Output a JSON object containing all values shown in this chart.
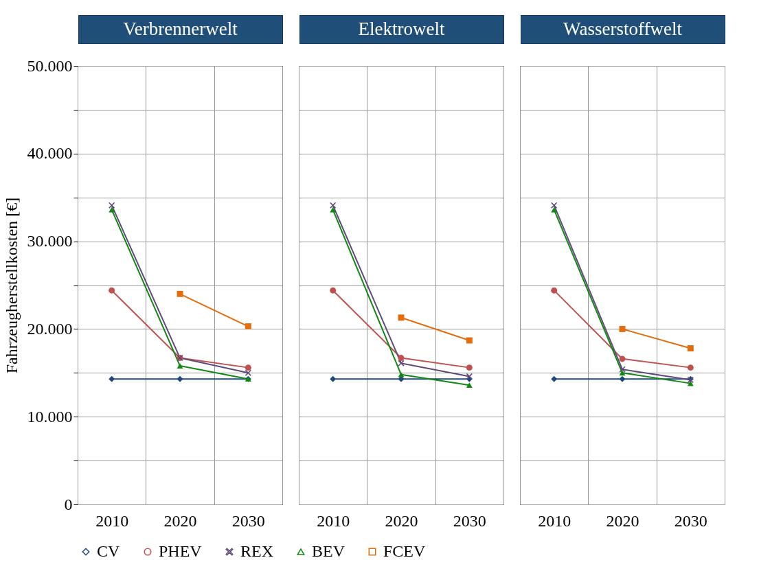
{
  "chart_data": [
    {
      "type": "line",
      "title": "Verbrennerwelt",
      "ylabel": "Fahrzeugherstellkosten [€]",
      "categories": [
        "2010",
        "2020",
        "2030"
      ],
      "ylim": [
        0,
        50000
      ],
      "yticks": [
        0,
        {
          "value": 5000,
          "label": null
        },
        {
          "value": 10000,
          "label": "10.000"
        },
        {
          "value": 15000,
          "label": null
        },
        {
          "value": 20000,
          "label": "20.000"
        },
        {
          "value": 25000,
          "label": null
        },
        {
          "value": 30000,
          "label": "30.000"
        },
        {
          "value": 35000,
          "label": null
        },
        {
          "value": 40000,
          "label": "40.000"
        },
        {
          "value": 45000,
          "label": null
        },
        {
          "value": 50000,
          "label": "50.000"
        }
      ],
      "grid": true,
      "legend": "bottom",
      "line_style": "solid",
      "series": [
        {
          "name": "CV",
          "color": "#1f497d",
          "marker": "diamond",
          "values": [
            14300,
            14300,
            14300
          ]
        },
        {
          "name": "PHEV",
          "color": "#c0504d",
          "marker": "circle",
          "values": [
            24400,
            16700,
            15600
          ]
        },
        {
          "name": "REX",
          "color": "#604a7b",
          "marker": "cross",
          "values": [
            34100,
            16700,
            15000
          ]
        },
        {
          "name": "BEV",
          "color": "#118811",
          "marker": "triangle",
          "values": [
            33600,
            15800,
            14300
          ]
        },
        {
          "name": "FCEV",
          "color": "#e46c0a",
          "marker": "square",
          "values": [
            null,
            24000,
            20300
          ]
        }
      ]
    },
    {
      "type": "line",
      "title": "Elektrowelt",
      "categories": [
        "2010",
        "2020",
        "2030"
      ],
      "ylim": [
        0,
        50000
      ],
      "yticks": [
        0,
        5000,
        10000,
        15000,
        20000,
        25000,
        30000,
        35000,
        40000,
        45000,
        50000
      ],
      "grid": true,
      "legend": "bottom",
      "line_style": "solid",
      "tick_labels": "x",
      "series": [
        {
          "name": "CV",
          "color": "#1f497d",
          "marker": "diamond",
          "values": [
            14300,
            14300,
            14300
          ]
        },
        {
          "name": "PHEV",
          "color": "#c0504d",
          "marker": "circle",
          "values": [
            24400,
            16700,
            15600
          ]
        },
        {
          "name": "REX",
          "color": "#604a7b",
          "marker": "cross",
          "values": [
            34100,
            16100,
            14600
          ]
        },
        {
          "name": "BEV",
          "color": "#118811",
          "marker": "triangle",
          "values": [
            33600,
            14800,
            13600
          ]
        },
        {
          "name": "FCEV",
          "color": "#e46c0a",
          "marker": "square",
          "values": [
            null,
            21300,
            18700
          ]
        }
      ]
    },
    {
      "type": "line",
      "title": "Wasserstoffwelt",
      "categories": [
        "2010",
        "2020",
        "2030"
      ],
      "ylim": [
        0,
        50000
      ],
      "yticks": [
        0,
        5000,
        10000,
        15000,
        20000,
        25000,
        30000,
        35000,
        40000,
        45000,
        50000
      ],
      "grid": true,
      "legend": "bottom",
      "line_style": "solid",
      "tick_labels": "x",
      "series": [
        {
          "name": "CV",
          "color": "#1f497d",
          "marker": "diamond",
          "values": [
            14300,
            14300,
            14300
          ]
        },
        {
          "name": "PHEV",
          "color": "#c0504d",
          "marker": "circle",
          "values": [
            24400,
            16600,
            15600
          ]
        },
        {
          "name": "REX",
          "color": "#604a7b",
          "marker": "cross",
          "values": [
            34100,
            15400,
            14200
          ]
        },
        {
          "name": "BEV",
          "color": "#118811",
          "marker": "triangle",
          "values": [
            33600,
            15000,
            13800
          ]
        },
        {
          "name": "FCEV",
          "color": "#e46c0a",
          "marker": "square",
          "values": [
            null,
            20000,
            17800
          ]
        }
      ]
    }
  ]
}
